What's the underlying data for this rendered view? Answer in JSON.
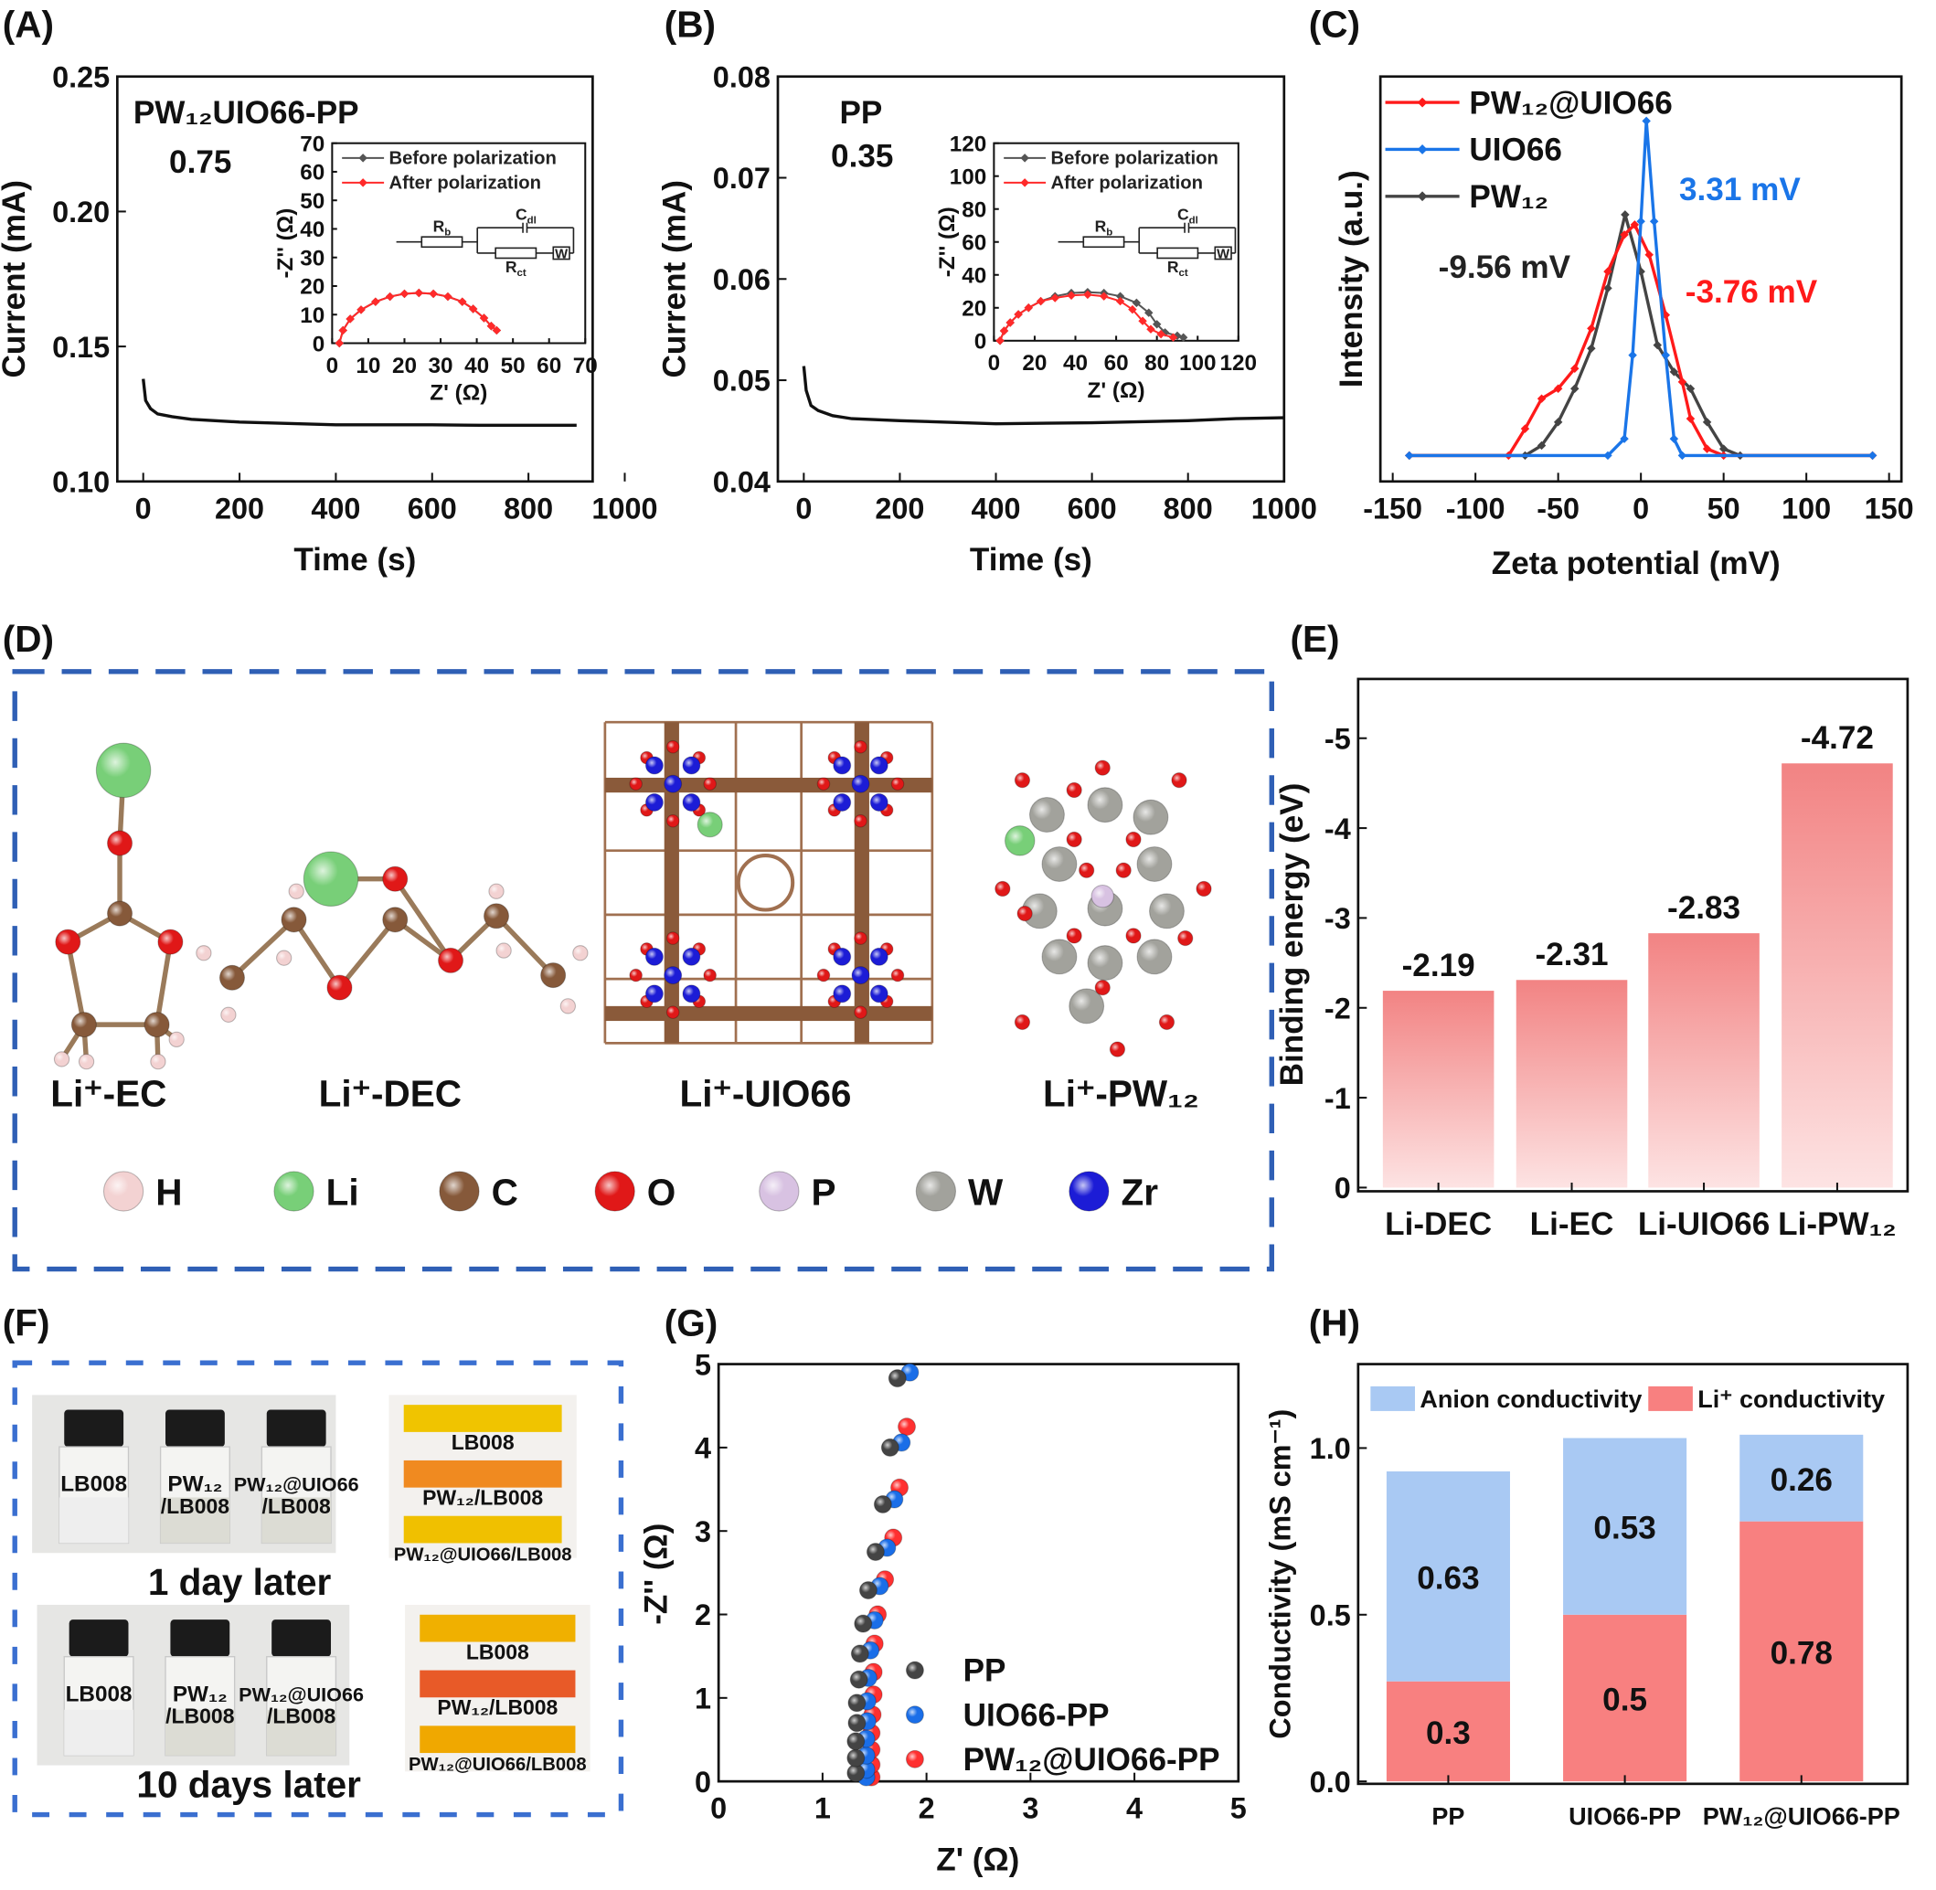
{
  "panel_labels": {
    "A": "(A)",
    "B": "(B)",
    "C": "(C)",
    "D": "(D)",
    "E": "(E)",
    "F": "(F)",
    "G": "(G)",
    "H": "(H)"
  },
  "chart_data": {
    "A": {
      "type": "line",
      "title": "PW₁₂UIO66-PP",
      "annotation": "0.75",
      "xlabel": "Time (s)",
      "ylabel": "Current (mA)",
      "xlim": [
        0,
        1000
      ],
      "ylim": [
        0.1,
        0.25
      ],
      "xticks": [
        "0",
        "200",
        "400",
        "600",
        "800",
        "1000"
      ],
      "yticks": [
        "0.10",
        "0.15",
        "0.20",
        "0.25"
      ],
      "series": [
        {
          "color": "#111111",
          "x": [
            0,
            5,
            15,
            30,
            60,
            100,
            200,
            300,
            400,
            500,
            600,
            700,
            800,
            900
          ],
          "y": [
            0.138,
            0.13,
            0.127,
            0.125,
            0.124,
            0.123,
            0.122,
            0.1215,
            0.121,
            0.121,
            0.121,
            0.1208,
            0.1208,
            0.1208
          ]
        }
      ],
      "inset": {
        "type": "scatter",
        "xlabel": "Z' (Ω)",
        "ylabel": "-Z'' (Ω)",
        "xlim": [
          0,
          70
        ],
        "ylim": [
          0,
          70
        ],
        "xticks": [
          "0",
          "10",
          "20",
          "30",
          "40",
          "50",
          "60",
          "70"
        ],
        "yticks": [
          "0",
          "10",
          "20",
          "30",
          "40",
          "50",
          "60",
          "70"
        ],
        "series": [
          {
            "name": "Before polarization",
            "color": "#555555",
            "points": [
              [
                2,
                0
              ],
              [
                3,
                4.5
              ],
              [
                5,
                8.5
              ],
              [
                8,
                11.7
              ],
              [
                12,
                14.5
              ],
              [
                16,
                16.3
              ],
              [
                20,
                17.3
              ],
              [
                24,
                17.6
              ],
              [
                28,
                17.3
              ],
              [
                32,
                16.3
              ],
              [
                36,
                14.5
              ],
              [
                39,
                12
              ],
              [
                42,
                8.8
              ],
              [
                44,
                6
              ],
              [
                45.5,
                4.5
              ]
            ]
          },
          {
            "name": "After polarization",
            "color": "#ff2a2a",
            "points": [
              [
                2,
                0
              ],
              [
                3,
                4.5
              ],
              [
                5,
                8.5
              ],
              [
                8,
                11.7
              ],
              [
                12,
                14.5
              ],
              [
                16,
                16.3
              ],
              [
                20,
                17.3
              ],
              [
                24,
                17.6
              ],
              [
                28,
                17.3
              ],
              [
                32,
                16.3
              ],
              [
                36,
                14.5
              ],
              [
                39,
                12
              ],
              [
                42,
                8.8
              ],
              [
                44,
                6
              ],
              [
                45.5,
                4.5
              ]
            ]
          }
        ],
        "circuit": {
          "rb": {
            "main": "R",
            "sub": "b"
          },
          "cdl": {
            "main": "C",
            "sub": "dl"
          },
          "rct": {
            "main": "R",
            "sub": "ct"
          },
          "w": "W"
        }
      }
    },
    "B": {
      "type": "line",
      "title": "PP",
      "annotation": "0.35",
      "xlabel": "Time (s)",
      "ylabel": "Current (mA)",
      "xlim": [
        0,
        1000
      ],
      "ylim": [
        0.04,
        0.08
      ],
      "xticks": [
        "0",
        "200",
        "400",
        "600",
        "800",
        "1000"
      ],
      "yticks": [
        "0.04",
        "0.05",
        "0.06",
        "0.07",
        "0.08"
      ],
      "series": [
        {
          "color": "#111111",
          "x": [
            0,
            5,
            15,
            30,
            60,
            100,
            200,
            400,
            600,
            800,
            900,
            1000
          ],
          "y": [
            0.0514,
            0.049,
            0.0475,
            0.047,
            0.0465,
            0.0462,
            0.046,
            0.0457,
            0.0458,
            0.046,
            0.0462,
            0.0463
          ]
        }
      ],
      "inset": {
        "type": "scatter",
        "xlabel": "Z' (Ω)",
        "ylabel": "-Z'' (Ω)",
        "xlim": [
          0,
          120
        ],
        "ylim": [
          0,
          120
        ],
        "xticks": [
          "0",
          "20",
          "40",
          "60",
          "80",
          "100",
          "120"
        ],
        "yticks": [
          "0",
          "20",
          "40",
          "60",
          "80",
          "100",
          "120"
        ],
        "series": [
          {
            "name": "Before  polarization",
            "color": "#555555",
            "points": [
              [
                3,
                0
              ],
              [
                5,
                6
              ],
              [
                8,
                11
              ],
              [
                12,
                16
              ],
              [
                17,
                20
              ],
              [
                23,
                24
              ],
              [
                30,
                27
              ],
              [
                38,
                29
              ],
              [
                46,
                29.5
              ],
              [
                54,
                29
              ],
              [
                62,
                27
              ],
              [
                70,
                23
              ],
              [
                76,
                17
              ],
              [
                80,
                10
              ],
              [
                84,
                5
              ],
              [
                90,
                3
              ],
              [
                93,
                2
              ]
            ]
          },
          {
            "name": "After polarization",
            "color": "#ff2a2a",
            "points": [
              [
                3,
                0
              ],
              [
                5,
                6
              ],
              [
                8,
                11
              ],
              [
                12,
                16
              ],
              [
                17,
                20
              ],
              [
                23,
                24
              ],
              [
                30,
                26
              ],
              [
                38,
                27.5
              ],
              [
                46,
                28
              ],
              [
                54,
                27
              ],
              [
                62,
                24
              ],
              [
                68,
                19
              ],
              [
                73,
                12
              ],
              [
                77,
                7
              ],
              [
                82,
                4
              ],
              [
                88,
                2
              ]
            ]
          }
        ],
        "circuit": {
          "rb": {
            "main": "R",
            "sub": "b"
          },
          "cdl": {
            "main": "C",
            "sub": "dl"
          },
          "rct": {
            "main": "R",
            "sub": "ct"
          },
          "w": "W"
        }
      }
    },
    "C": {
      "type": "line",
      "xlabel": "Zeta potential (mV)",
      "ylabel": "Intensity (a.u.)",
      "xlim": [
        -150,
        150
      ],
      "xticks": [
        "-150",
        "-100",
        "-50",
        "0",
        "50",
        "100",
        "150"
      ],
      "legend_position": "top-left",
      "series": [
        {
          "name": "PW₁₂@UIO66",
          "color": "#ff1a1a",
          "peak_label": "-3.76 mV",
          "points": [
            [
              -140,
              0
            ],
            [
              -80,
              0
            ],
            [
              -70,
              0.08
            ],
            [
              -60,
              0.17
            ],
            [
              -50,
              0.2
            ],
            [
              -40,
              0.26
            ],
            [
              -30,
              0.38
            ],
            [
              -20,
              0.55
            ],
            [
              -10,
              0.66
            ],
            [
              -3.76,
              0.69
            ],
            [
              5,
              0.6
            ],
            [
              15,
              0.42
            ],
            [
              25,
              0.22
            ],
            [
              30,
              0.11
            ],
            [
              40,
              0.02
            ],
            [
              50,
              0
            ],
            [
              140,
              0
            ]
          ]
        },
        {
          "name": "UIO66",
          "color": "#1a75e8",
          "peak_label": "3.31 mV",
          "points": [
            [
              -140,
              0
            ],
            [
              -20,
              0
            ],
            [
              -10,
              0.05
            ],
            [
              -5,
              0.3
            ],
            [
              0,
              0.7
            ],
            [
              3.31,
              1.0
            ],
            [
              8,
              0.7
            ],
            [
              15,
              0.3
            ],
            [
              20,
              0.05
            ],
            [
              25,
              0
            ],
            [
              140,
              0
            ]
          ]
        },
        {
          "name": "PW₁₂",
          "color": "#444444",
          "peak_label": "-9.56 mV",
          "points": [
            [
              -140,
              0
            ],
            [
              -70,
              0
            ],
            [
              -60,
              0.03
            ],
            [
              -50,
              0.1
            ],
            [
              -40,
              0.2
            ],
            [
              -30,
              0.32
            ],
            [
              -20,
              0.5
            ],
            [
              -9.56,
              0.72
            ],
            [
              0,
              0.55
            ],
            [
              10,
              0.33
            ],
            [
              20,
              0.25
            ],
            [
              30,
              0.2
            ],
            [
              40,
              0.1
            ],
            [
              50,
              0.02
            ],
            [
              60,
              0
            ],
            [
              140,
              0
            ]
          ]
        }
      ]
    },
    "E": {
      "type": "bar",
      "xlabel": "",
      "ylabel": "Binding energy (eV)",
      "ylim": [
        0,
        -5.5
      ],
      "yticks": [
        "0",
        "-1",
        "-2",
        "-3",
        "-4",
        "-5"
      ],
      "categories": [
        "Li-DEC",
        "Li-EC",
        "Li-UIO66",
        "Li-PW₁₂"
      ],
      "values": [
        -2.19,
        -2.31,
        -2.83,
        -4.72
      ],
      "value_labels": [
        "-2.19",
        "-2.31",
        "-2.83",
        "-4.72"
      ],
      "color_top": "#f28383",
      "color_bottom": "#fde3e3"
    },
    "G": {
      "type": "scatter",
      "xlabel": "Z' (Ω)",
      "ylabel": "-Z'' (Ω)",
      "xlim": [
        0,
        5
      ],
      "ylim": [
        0,
        5
      ],
      "xticks": [
        "0",
        "1",
        "2",
        "3",
        "4",
        "5"
      ],
      "yticks": [
        "0",
        "1",
        "2",
        "3",
        "4",
        "5"
      ],
      "legend_position": "bottom-right",
      "series": [
        {
          "name": "PP",
          "color": "#444444",
          "points": [
            [
              1.32,
              0.1
            ],
            [
              1.32,
              0.28
            ],
            [
              1.32,
              0.48
            ],
            [
              1.33,
              0.7
            ],
            [
              1.33,
              0.94
            ],
            [
              1.35,
              1.22
            ],
            [
              1.36,
              1.53
            ],
            [
              1.39,
              1.89
            ],
            [
              1.44,
              2.29
            ],
            [
              1.51,
              2.75
            ],
            [
              1.58,
              3.32
            ],
            [
              1.65,
              4.0
            ],
            [
              1.72,
              4.83
            ]
          ]
        },
        {
          "name": "UIO66-PP",
          "color": "#1a6ee8",
          "points": [
            [
              1.42,
              0.05
            ],
            [
              1.42,
              0.14
            ],
            [
              1.42,
              0.31
            ],
            [
              1.42,
              0.51
            ],
            [
              1.43,
              0.72
            ],
            [
              1.43,
              0.96
            ],
            [
              1.44,
              1.24
            ],
            [
              1.46,
              1.57
            ],
            [
              1.5,
              1.93
            ],
            [
              1.55,
              2.34
            ],
            [
              1.62,
              2.8
            ],
            [
              1.69,
              3.38
            ],
            [
              1.76,
              4.06
            ],
            [
              1.84,
              4.9
            ]
          ]
        },
        {
          "name": "PW₁₂@UIO66-PP",
          "color": "#ff3030",
          "points": [
            [
              1.47,
              0.05
            ],
            [
              1.47,
              0.2
            ],
            [
              1.47,
              0.38
            ],
            [
              1.47,
              0.58
            ],
            [
              1.48,
              0.8
            ],
            [
              1.49,
              1.04
            ],
            [
              1.49,
              1.31
            ],
            [
              1.5,
              1.65
            ],
            [
              1.53,
              2.0
            ],
            [
              1.6,
              2.42
            ],
            [
              1.68,
              2.92
            ],
            [
              1.74,
              3.52
            ],
            [
              1.81,
              4.25
            ]
          ]
        }
      ]
    },
    "H": {
      "type": "bar",
      "stacked": true,
      "xlabel": "",
      "ylabel": "Conductivity (mS cm⁻¹)",
      "ylim": [
        0,
        1.25
      ],
      "yticks": [
        "0.0",
        "0.5",
        "1.0"
      ],
      "categories": [
        "PP",
        "UIO66-PP",
        "PW₁₂@UIO66-PP"
      ],
      "legend_position": "top",
      "series": [
        {
          "name": "Li⁺ conductivity",
          "color": "#f88080",
          "values": [
            0.3,
            0.5,
            0.78
          ],
          "labels": [
            "0.3",
            "0.5",
            "0.78"
          ]
        },
        {
          "name": "Anion conductivity",
          "color": "#a9c9f3",
          "values": [
            0.63,
            0.53,
            0.26
          ],
          "labels": [
            "0.63",
            "0.53",
            "0.26"
          ]
        }
      ]
    }
  },
  "panel_D": {
    "labels": [
      "Li⁺-EC",
      "Li⁺-DEC",
      "Li⁺-UIO66",
      "Li⁺-PW₁₂"
    ],
    "atoms": [
      {
        "symbol": "H",
        "color": "#f3d2d2"
      },
      {
        "symbol": "Li",
        "color": "#78cf78"
      },
      {
        "symbol": "C",
        "color": "#86593a"
      },
      {
        "symbol": "O",
        "color": "#e01818"
      },
      {
        "symbol": "P",
        "color": "#d8c2e2"
      },
      {
        "symbol": "W",
        "color": "#a2a29c"
      },
      {
        "symbol": "Zr",
        "color": "#1c1cd6"
      }
    ],
    "border_color": "#2f5fb5"
  },
  "panel_F": {
    "border_color": "#3a6fd0",
    "day1": {
      "caption": "1 day later",
      "vials": [
        [
          "LB008",
          ""
        ],
        [
          "PW₁₂",
          "/LB008"
        ],
        [
          "PW₁₂@UIO66",
          "/LB008"
        ]
      ],
      "strips": [
        "LB008",
        "PW₁₂/LB008",
        "PW₁₂@UIO66/LB008"
      ]
    },
    "day10": {
      "caption": "10 days later",
      "vials": [
        [
          "LB008",
          ""
        ],
        [
          "PW₁₂",
          "/LB008"
        ],
        [
          "PW₁₂@UIO66",
          "/LB008"
        ]
      ],
      "strips": [
        "LB008",
        "PW₁₂/LB008",
        "PW₁₂@UIO66/LB008"
      ]
    }
  }
}
